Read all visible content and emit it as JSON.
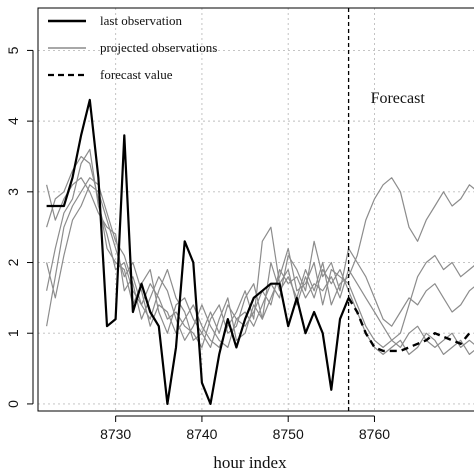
{
  "chart_data": {
    "type": "line",
    "xlabel": "hour index",
    "ylabel": "",
    "xlim": [
      8721,
      8772
    ],
    "ylim": [
      -0.1,
      5.6
    ],
    "grid": true,
    "legend_position": "top-left",
    "x_ticks": [
      8730,
      8740,
      8750,
      8760
    ],
    "y_ticks": [
      0,
      1,
      2,
      3,
      4,
      5
    ],
    "forecast_line_x": 8757,
    "forecast_label": "Forecast",
    "series": [
      {
        "name": "last observation",
        "style": "solid-bold",
        "color": "#000000",
        "x": [
          8722,
          8723,
          8724,
          8725,
          8726,
          8727,
          8728,
          8729,
          8730,
          8731,
          8732,
          8733,
          8734,
          8735,
          8736,
          8737,
          8738,
          8739,
          8740,
          8741,
          8742,
          8743,
          8744,
          8745,
          8746,
          8747,
          8748,
          8749,
          8750,
          8751,
          8752,
          8753,
          8754,
          8755,
          8756,
          8757
        ],
        "y": [
          2.8,
          2.8,
          2.8,
          3.2,
          3.8,
          4.3,
          3.2,
          1.1,
          1.2,
          3.8,
          1.3,
          1.7,
          1.3,
          1.1,
          0.0,
          0.8,
          2.3,
          2.0,
          0.3,
          0.0,
          0.7,
          1.2,
          0.8,
          1.2,
          1.5,
          1.6,
          1.7,
          1.7,
          1.1,
          1.5,
          1.0,
          1.3,
          1.0,
          0.2,
          1.2,
          1.5
        ]
      },
      {
        "name": "forecast value",
        "style": "dashed-bold",
        "color": "#000000",
        "x": [
          8757,
          8758,
          8759,
          8760,
          8761,
          8762,
          8763,
          8764,
          8765,
          8766,
          8767,
          8768,
          8769,
          8770,
          8771,
          8772
        ],
        "y": [
          1.5,
          1.3,
          1.0,
          0.8,
          0.75,
          0.75,
          0.75,
          0.8,
          0.85,
          0.9,
          1.0,
          0.95,
          0.9,
          0.85,
          1.0,
          1.0
        ]
      },
      {
        "name": "projected observations",
        "style": "thin",
        "color": "#8c8c8c",
        "x": [
          8722,
          8723,
          8724,
          8725,
          8726,
          8727,
          8728,
          8729,
          8730,
          8731,
          8732,
          8733,
          8734,
          8735,
          8736,
          8737,
          8738,
          8739,
          8740,
          8741,
          8742,
          8743,
          8744,
          8745,
          8746,
          8747,
          8748,
          8749,
          8750,
          8751,
          8752,
          8753,
          8754,
          8755,
          8756,
          8757,
          8758,
          8759,
          8760,
          8761,
          8762,
          8763,
          8764,
          8765,
          8766,
          8767,
          8768,
          8769,
          8770,
          8771,
          8772
        ],
        "y": [
          3.1,
          2.6,
          2.9,
          3.1,
          3.2,
          3.0,
          2.7,
          2.5,
          2.4,
          1.6,
          1.8,
          1.4,
          1.7,
          1.5,
          1.2,
          1.3,
          1.1,
          1.0,
          0.8,
          1.2,
          1.4,
          1.0,
          1.1,
          1.5,
          1.7,
          1.2,
          2.0,
          1.6,
          1.8,
          1.5,
          1.9,
          1.6,
          2.0,
          1.4,
          1.7,
          1.8,
          2.1,
          2.6,
          2.9,
          3.1,
          3.2,
          3.0,
          2.5,
          2.3,
          2.6,
          2.8,
          3.0,
          2.8,
          2.9,
          3.1,
          3.0
        ]
      },
      {
        "name": "projected observations",
        "style": "thin",
        "color": "#8c8c8c",
        "x": [
          8722,
          8723,
          8724,
          8725,
          8726,
          8727,
          8728,
          8729,
          8730,
          8731,
          8732,
          8733,
          8734,
          8735,
          8736,
          8737,
          8738,
          8739,
          8740,
          8741,
          8742,
          8743,
          8744,
          8745,
          8746,
          8747,
          8748,
          8749,
          8750,
          8751,
          8752,
          8753,
          8754,
          8755,
          8756,
          8757,
          8758,
          8759,
          8760,
          8761,
          8762,
          8763,
          8764,
          8765,
          8766,
          8767,
          8768,
          8769,
          8770,
          8771,
          8772
        ],
        "y": [
          2.5,
          2.9,
          3.0,
          3.3,
          3.5,
          3.4,
          2.9,
          2.2,
          2.0,
          1.9,
          1.4,
          1.7,
          1.9,
          1.3,
          1.0,
          1.4,
          1.5,
          1.2,
          1.0,
          1.3,
          1.0,
          1.4,
          1.2,
          1.1,
          1.3,
          1.6,
          1.4,
          1.9,
          1.7,
          1.8,
          1.5,
          1.7,
          1.6,
          1.8,
          1.5,
          1.9,
          1.7,
          1.5,
          1.3,
          1.1,
          0.9,
          1.0,
          1.4,
          1.8,
          2.0,
          2.1,
          1.9,
          2.0,
          1.8,
          1.9,
          2.0
        ]
      },
      {
        "name": "projected observations",
        "style": "thin",
        "color": "#8c8c8c",
        "x": [
          8722,
          8723,
          8724,
          8725,
          8726,
          8727,
          8728,
          8729,
          8730,
          8731,
          8732,
          8733,
          8734,
          8735,
          8736,
          8737,
          8738,
          8739,
          8740,
          8741,
          8742,
          8743,
          8744,
          8745,
          8746,
          8747,
          8748,
          8749,
          8750,
          8751,
          8752,
          8753,
          8754,
          8755,
          8756,
          8757,
          8758,
          8759,
          8760,
          8761,
          8762,
          8763,
          8764,
          8765,
          8766,
          8767,
          8768,
          8769,
          8770,
          8771,
          8772
        ],
        "y": [
          1.1,
          1.8,
          2.5,
          2.8,
          3.0,
          3.2,
          3.1,
          2.7,
          2.3,
          2.1,
          1.7,
          1.2,
          1.5,
          1.8,
          1.6,
          1.2,
          0.9,
          1.1,
          1.4,
          1.1,
          0.9,
          0.8,
          1.2,
          1.3,
          1.1,
          1.4,
          1.7,
          1.5,
          2.1,
          1.9,
          1.6,
          2.3,
          1.8,
          2.0,
          1.6,
          2.2,
          2.0,
          1.8,
          1.5,
          1.2,
          1.1,
          1.3,
          1.5,
          1.4,
          1.6,
          1.7,
          1.5,
          1.3,
          1.4,
          1.6,
          1.7
        ]
      },
      {
        "name": "projected observations",
        "style": "thin",
        "color": "#8c8c8c",
        "x": [
          8722,
          8723,
          8724,
          8725,
          8726,
          8727,
          8728,
          8729,
          8730,
          8731,
          8732,
          8733,
          8734,
          8735,
          8736,
          8737,
          8738,
          8739,
          8740,
          8741,
          8742,
          8743,
          8744,
          8745,
          8746,
          8747,
          8748,
          8749,
          8750,
          8751,
          8752,
          8753,
          8754,
          8755,
          8756,
          8757,
          8758,
          8759,
          8760,
          8761,
          8762,
          8763,
          8764,
          8765,
          8766,
          8767,
          8768,
          8769,
          8770,
          8771,
          8772
        ],
        "y": [
          1.6,
          2.2,
          2.7,
          2.9,
          3.4,
          3.6,
          2.8,
          2.4,
          1.9,
          2.0,
          1.6,
          1.4,
          1.2,
          1.6,
          1.9,
          1.5,
          1.3,
          0.9,
          1.0,
          0.8,
          1.2,
          1.5,
          0.9,
          1.0,
          1.4,
          1.2,
          1.5,
          1.8,
          2.2,
          1.6,
          1.7,
          2.0,
          1.4,
          1.9,
          1.8,
          1.7,
          1.4,
          1.1,
          0.9,
          0.8,
          0.9,
          0.8,
          1.0,
          1.1,
          0.9,
          0.8,
          0.9,
          1.0,
          0.8,
          0.9,
          0.8
        ]
      },
      {
        "name": "projected observations",
        "style": "thin",
        "color": "#8c8c8c",
        "x": [
          8722,
          8723,
          8724,
          8725,
          8726,
          8727,
          8728,
          8729,
          8730,
          8731,
          8732,
          8733,
          8734,
          8735,
          8736,
          8737,
          8738,
          8739,
          8740,
          8741,
          8742,
          8743,
          8744,
          8745,
          8746,
          8747,
          8748,
          8749,
          8750,
          8751,
          8752,
          8753,
          8754,
          8755,
          8756,
          8757,
          8758,
          8759,
          8760,
          8761,
          8762,
          8763,
          8764,
          8765,
          8766,
          8767,
          8768,
          8769,
          8770,
          8771,
          8772
        ],
        "y": [
          2.0,
          1.5,
          2.1,
          2.6,
          2.8,
          3.1,
          3.0,
          2.6,
          2.2,
          1.8,
          2.0,
          1.6,
          1.1,
          1.4,
          1.3,
          1.0,
          1.2,
          1.4,
          1.1,
          0.9,
          0.8,
          1.1,
          1.3,
          1.6,
          1.2,
          2.3,
          2.5,
          1.7,
          1.9,
          1.4,
          1.8,
          1.5,
          1.9,
          1.7,
          1.9,
          1.6,
          1.3,
          1.0,
          0.8,
          0.7,
          0.8,
          0.9,
          0.7,
          0.8,
          1.0,
          0.9,
          0.7,
          0.8,
          0.9,
          0.7,
          0.8
        ]
      }
    ]
  }
}
